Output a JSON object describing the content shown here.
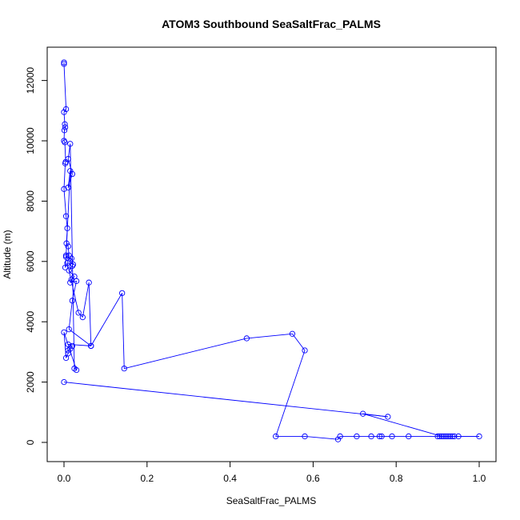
{
  "chart_data": {
    "type": "line",
    "title": "ATOM3 Southbound SeaSaltFrac_PALMS",
    "xlabel": "SeaSaltFrac_PALMS",
    "ylabel": "Altitude (m)",
    "xlim": [
      0,
      1.0
    ],
    "ylim": [
      0,
      12600
    ],
    "xticks": [
      "0.0",
      "0.2",
      "0.4",
      "0.6",
      "0.8",
      "1.0"
    ],
    "yticks": [
      "0",
      "2000",
      "4000",
      "6000",
      "8000",
      "10000",
      "12000"
    ],
    "grid": false,
    "series_color": "#0000ff",
    "series": [
      {
        "x": [
          0.0,
          0.0,
          0.005,
          0.0,
          0.002,
          0.003,
          0.001,
          0.0,
          0.002,
          0.004,
          0.003,
          0.0,
          0.005,
          0.008,
          0.006,
          0.01,
          0.012,
          0.005,
          0.018,
          0.015,
          0.022,
          0.02,
          0.012,
          0.025,
          0.018,
          0.015,
          0.03,
          0.02,
          0.012,
          0.065,
          0.01,
          0.02,
          0.015,
          0.01,
          0.01,
          0.005,
          0.0,
          0.03,
          0.025,
          0.015,
          0.01,
          0.02,
          0.01,
          0.015,
          0.005,
          0.003,
          0.008,
          0.035,
          0.045,
          0.06,
          0.065,
          0.14,
          0.145,
          0.44,
          0.55,
          0.58,
          0.51,
          0.58,
          0.66,
          0.665,
          0.705,
          0.74,
          0.76,
          0.765,
          0.79,
          0.83,
          0.9,
          0.905,
          0.915,
          0.92,
          0.925,
          0.93,
          0.935,
          0.94,
          0.95,
          1.0,
          0.91,
          0.72,
          0.78,
          0.0
        ],
        "y": [
          12600,
          12550,
          11050,
          10950,
          10550,
          10450,
          10350,
          10000,
          9950,
          9300,
          9250,
          8400,
          7500,
          7100,
          6600,
          6500,
          6200,
          6150,
          6100,
          6000,
          5900,
          5850,
          5700,
          5500,
          5400,
          5300,
          5350,
          4700,
          3750,
          3200,
          3250,
          3200,
          3100,
          3050,
          2950,
          2800,
          3650,
          2400,
          2450,
          9900,
          9400,
          8900,
          8450,
          9000,
          6200,
          5800,
          5950,
          4300,
          4150,
          5300,
          3200,
          4950,
          2450,
          3450,
          3600,
          3050,
          200,
          200,
          100,
          200,
          200,
          200,
          200,
          200,
          200,
          200,
          200,
          200,
          200,
          200,
          200,
          200,
          200,
          200,
          200,
          200,
          200,
          950,
          850,
          2000
        ]
      }
    ]
  }
}
